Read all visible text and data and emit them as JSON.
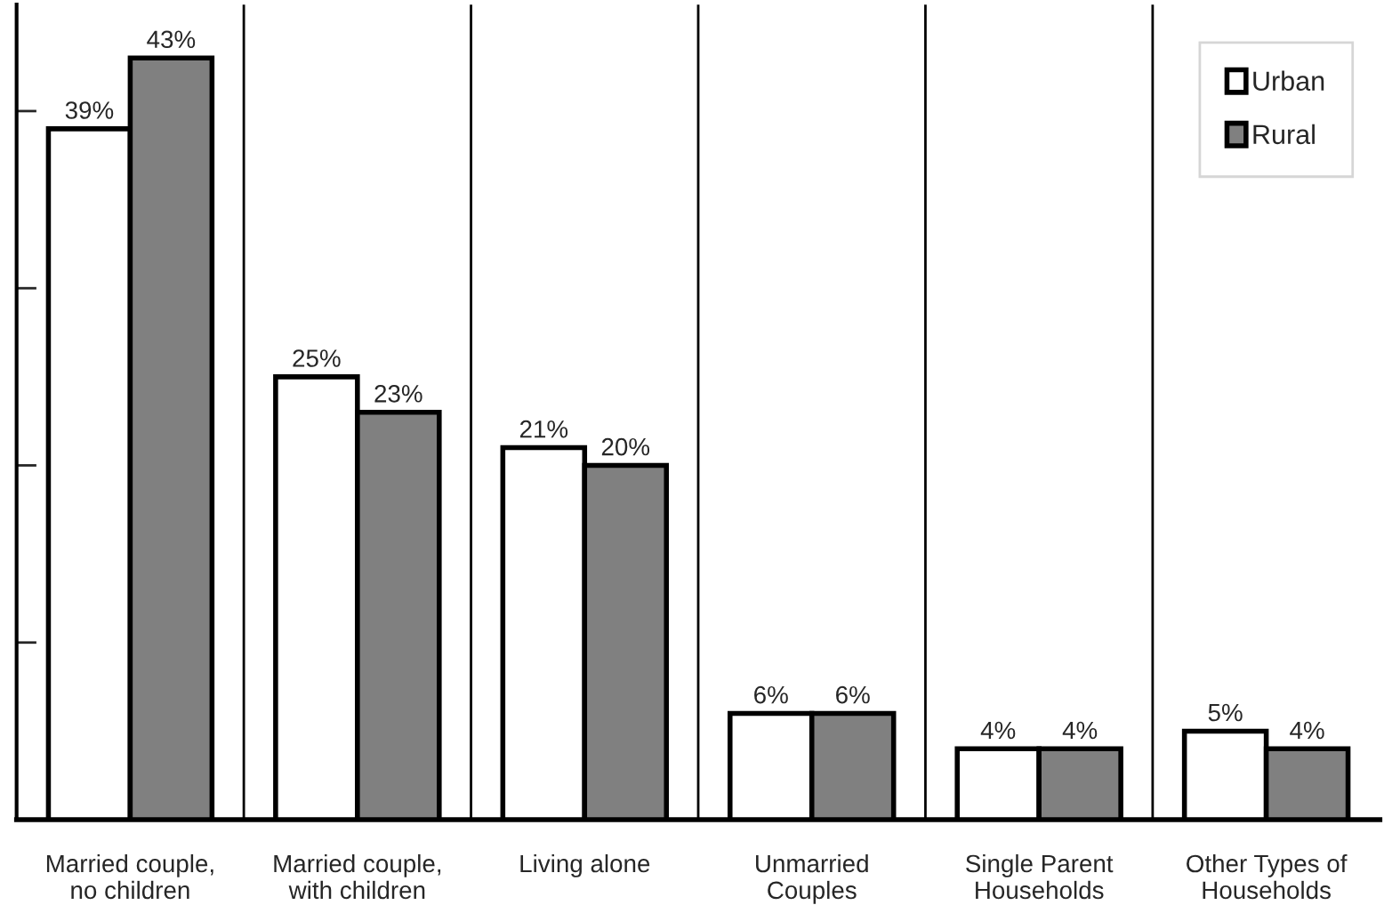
{
  "chart_data": {
    "type": "bar",
    "categories": [
      "Married couple,\nno children",
      "Married couple,\nwith children",
      "Living alone",
      "Unmarried\nCouples",
      "Single Parent\nHouseholds",
      "Other Types of\nHouseholds"
    ],
    "series": [
      {
        "name": "Urban",
        "color": "#ffffff",
        "values": [
          39,
          25,
          21,
          6,
          4,
          5
        ],
        "value_labels": [
          "39%",
          "25%",
          "21%",
          "6%",
          "4%",
          "5%"
        ]
      },
      {
        "name": "Rural",
        "color": "#808080",
        "values": [
          43,
          23,
          20,
          6,
          4,
          4
        ],
        "value_labels": [
          "43%",
          "23%",
          "20%",
          "6%",
          "4%",
          "4%"
        ]
      }
    ],
    "tick_labels": "x",
    "grid": "x",
    "legend": "top right"
  }
}
